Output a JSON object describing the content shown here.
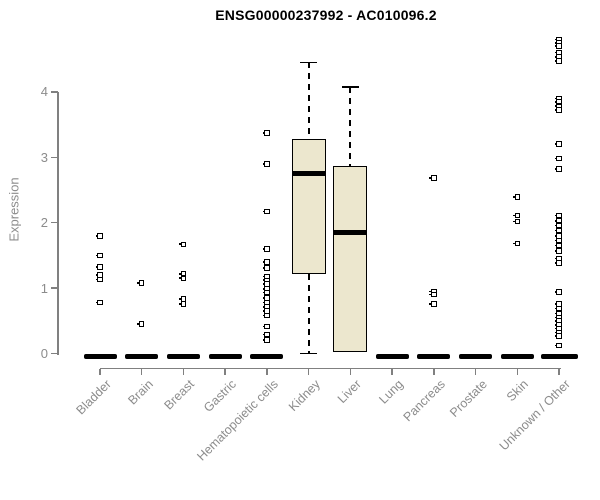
{
  "chart_data": {
    "type": "boxplot",
    "title": "ENSG00000237992 - AC010096.2",
    "xlabel": "",
    "ylabel": "Expression",
    "ylim": [
      0,
      4.85
    ],
    "yticks": [
      0,
      1,
      2,
      3,
      4
    ],
    "grid": false,
    "legend": "none",
    "categories": [
      "Bladder",
      "Brain",
      "Breast",
      "Gastric",
      "Hematopoietic cells",
      "Kidney",
      "Liver",
      "Lung",
      "Pancreas",
      "Prostate",
      "Skin",
      "Unknown / Other"
    ],
    "groups": [
      {
        "name": "Bladder",
        "points": [
          1.8,
          1.5,
          1.32,
          1.2,
          1.13,
          0.78
        ],
        "zero_bar": true,
        "box": null
      },
      {
        "name": "Brain",
        "points": [
          1.08,
          0.45
        ],
        "zero_bar": true,
        "box": null
      },
      {
        "name": "Breast",
        "points": [
          1.67,
          1.22,
          1.15,
          0.83,
          0.76
        ],
        "zero_bar": true,
        "box": null
      },
      {
        "name": "Gastric",
        "points": [],
        "zero_bar": true,
        "box": null
      },
      {
        "name": "Hematopoietic cells",
        "points": [
          3.37,
          2.9,
          2.17,
          1.6,
          1.4,
          1.31,
          1.18,
          1.12,
          1.06,
          0.99,
          0.93,
          0.85,
          0.78,
          0.71,
          0.65,
          0.58,
          0.41,
          0.29,
          0.21
        ],
        "zero_bar": true,
        "box": null
      },
      {
        "name": "Kidney",
        "points": [],
        "zero_bar": false,
        "box": {
          "q1": 1.22,
          "median": 2.75,
          "q3": 3.28,
          "whisker_low": 0,
          "whisker_high": 4.45
        }
      },
      {
        "name": "Liver",
        "points": [],
        "zero_bar": false,
        "box": {
          "q1": 0.02,
          "median": 1.85,
          "q3": 2.87,
          "whisker_low": null,
          "whisker_high": 4.08
        }
      },
      {
        "name": "Lung",
        "points": [],
        "zero_bar": true,
        "box": null
      },
      {
        "name": "Pancreas",
        "points": [
          2.68,
          0.95,
          0.9,
          0.76
        ],
        "zero_bar": true,
        "box": null
      },
      {
        "name": "Prostate",
        "points": [],
        "zero_bar": true,
        "box": null
      },
      {
        "name": "Skin",
        "points": [
          2.39,
          2.11,
          2.02,
          1.68
        ],
        "zero_bar": true,
        "box": null
      },
      {
        "name": "Unknown / Other",
        "points": [
          4.8,
          4.75,
          4.7,
          4.6,
          4.53,
          4.47,
          3.9,
          3.85,
          3.78,
          3.72,
          3.2,
          2.98,
          2.82,
          2.11,
          2.03,
          1.96,
          1.88,
          1.8,
          1.73,
          1.65,
          1.57,
          1.45,
          1.38,
          0.94,
          0.76,
          0.69,
          0.61,
          0.55,
          0.5,
          0.44,
          0.38,
          0.32,
          0.27,
          0.12
        ],
        "zero_bar": true,
        "box": null
      }
    ],
    "colors": {
      "box_fill": "#ECE7CE",
      "box_border": "#000000",
      "median": "#000000",
      "point": "#000000",
      "zero_bar": "#000000",
      "axis": "#808080",
      "tick_label": "#8c8c8c",
      "title": "#000000"
    }
  }
}
